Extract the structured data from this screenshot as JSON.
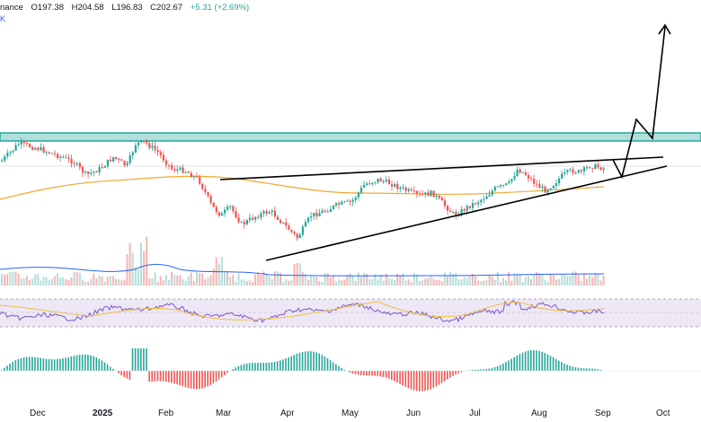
{
  "legend": {
    "symbol_fragment": "nance",
    "open": "O197.38",
    "high": "H204.58",
    "low": "L196.83",
    "close": "C202.67",
    "change": "+5.31 (+2.69%)",
    "sub_fragment": "K"
  },
  "time_axis": {
    "labels": [
      "Dec",
      "2025",
      "Feb",
      "Mar",
      "Apr",
      "May",
      "Jun",
      "Jul",
      "Aug",
      "Sep",
      "Oct"
    ]
  },
  "colors": {
    "up": "#26a69a",
    "down": "#ef5350",
    "zone_fill": "#b2dfdb",
    "zone_border": "#26a69a",
    "ma_line": "#f0a830",
    "volume_ma": "#2962ff",
    "rsi_line": "#7e57c2",
    "rsi_band": "#ede7f6",
    "rsi_ma": "#f0c040",
    "drawing": "#000000"
  },
  "panes": {
    "rsi_tag": "",
    "macd_tag": ""
  }
}
